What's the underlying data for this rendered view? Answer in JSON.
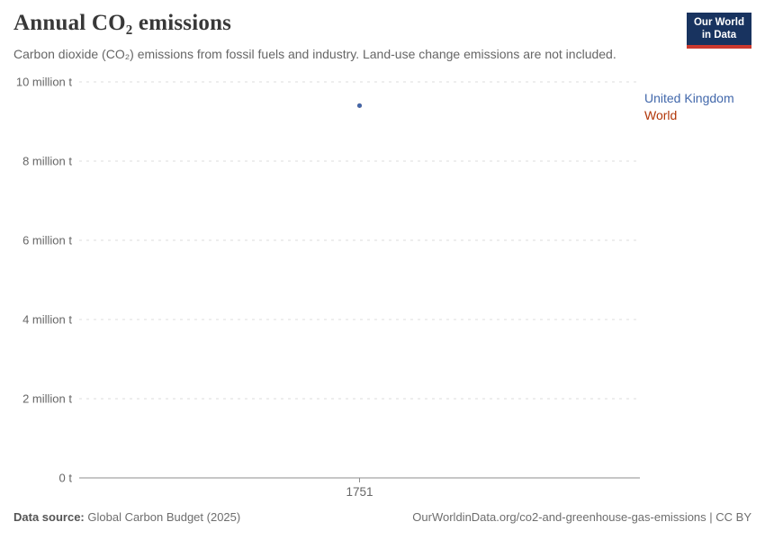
{
  "header": {
    "title": "Annual CO₂ emissions",
    "subtitle": "Carbon dioxide (CO₂) emissions from fossil fuels and industry. Land-use change emissions are not included.",
    "logo": {
      "line1": "Our World",
      "line2": "in Data",
      "bg_color": "#18335f",
      "accent_color": "#cc392e"
    }
  },
  "chart_data": {
    "type": "scatter",
    "title": "Annual CO₂ emissions",
    "xlabel": "",
    "ylabel": "",
    "unit": "million t",
    "x": [
      1751
    ],
    "series": [
      {
        "name": "United Kingdom",
        "color": "#4268ab",
        "values": [
          9.4
        ]
      },
      {
        "name": "World",
        "color": "#b13507",
        "values": [
          9.4
        ]
      }
    ],
    "ylim": [
      0,
      10
    ],
    "yticks": [
      {
        "value": 0,
        "label": "0 t"
      },
      {
        "value": 2,
        "label": "2 million t"
      },
      {
        "value": 4,
        "label": "4 million t"
      },
      {
        "value": 6,
        "label": "6 million t"
      },
      {
        "value": 8,
        "label": "8 million t"
      },
      {
        "value": 10,
        "label": "10 million t"
      }
    ],
    "xticks": [
      {
        "value": 1751,
        "label": "1751"
      }
    ],
    "grid": "dashed-horizontal",
    "legend_position": "right"
  },
  "footer": {
    "source_label": "Data source:",
    "source_value": "Global Carbon Budget (2025)",
    "attribution": "OurWorldinData.org/co2-and-greenhouse-gas-emissions | CC BY"
  }
}
